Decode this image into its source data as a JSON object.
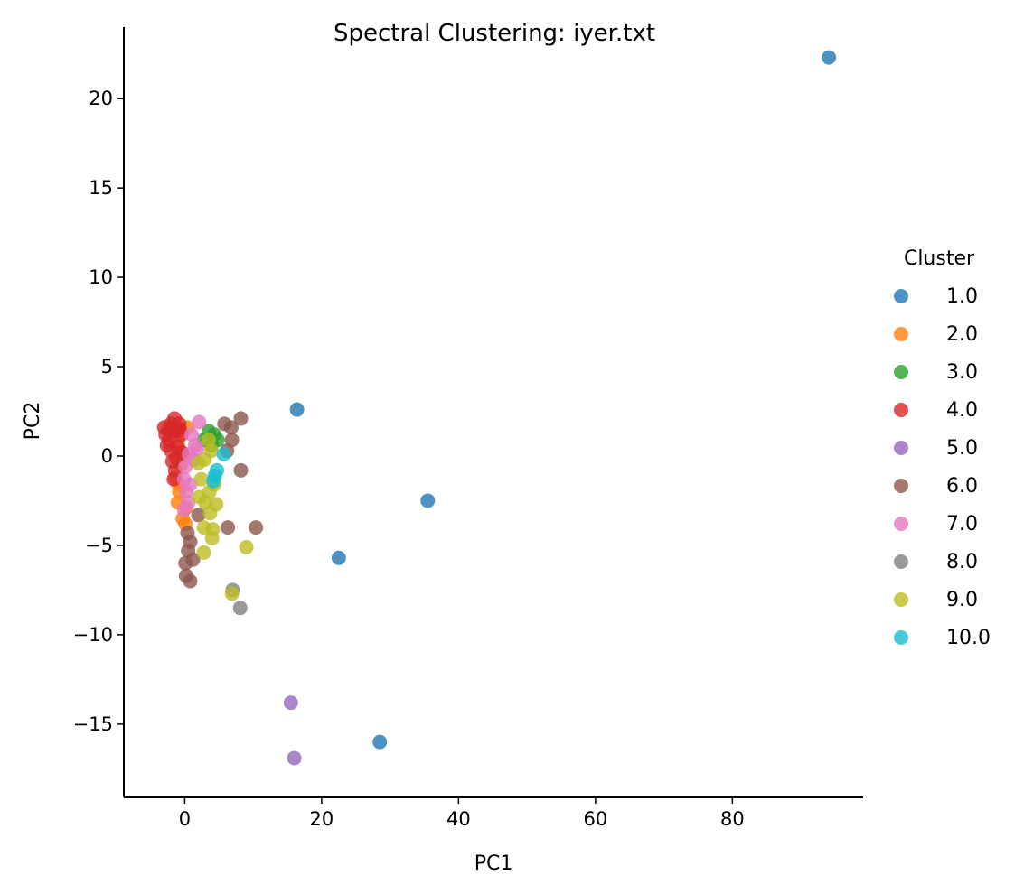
{
  "chart_data": {
    "type": "scatter",
    "title": "Spectral Clustering: iyer.txt",
    "xlabel": "PC1",
    "ylabel": "PC2",
    "xlim": [
      -8.9,
      99.1
    ],
    "ylim": [
      -19.1,
      24.0
    ],
    "xticks": [
      0,
      20,
      40,
      60,
      80
    ],
    "yticks": [
      -15,
      -10,
      -5,
      0,
      5,
      10,
      15,
      20
    ],
    "grid": false,
    "legend": {
      "title": "Cluster",
      "position": "right"
    },
    "series": [
      {
        "name": "1.0",
        "color": "#1f77b4",
        "points": [
          [
            94.1,
            22.3
          ],
          [
            16.4,
            2.6
          ],
          [
            35.5,
            -2.5
          ],
          [
            22.5,
            -5.7
          ],
          [
            28.5,
            -16.0
          ]
        ]
      },
      {
        "name": "2.0",
        "color": "#ff7f0e",
        "points": [
          [
            -2.5,
            1.5
          ],
          [
            -1.0,
            0.8
          ],
          [
            -0.6,
            -0.5
          ],
          [
            -1.3,
            -1.2
          ],
          [
            -0.8,
            -2.0
          ],
          [
            -1.0,
            -2.6
          ],
          [
            -0.3,
            -3.5
          ],
          [
            0.1,
            -3.8
          ],
          [
            0.4,
            1.6
          ],
          [
            -1.8,
            1.2
          ],
          [
            -0.2,
            0.0
          ],
          [
            -0.9,
            -1.6
          ],
          [
            0.2,
            -2.9
          ]
        ]
      },
      {
        "name": "3.0",
        "color": "#2ca02c",
        "points": [
          [
            3.5,
            1.4
          ],
          [
            4.3,
            1.2
          ],
          [
            2.8,
            0.9
          ],
          [
            3.9,
            0.6
          ],
          [
            4.8,
            0.9
          ]
        ]
      },
      {
        "name": "4.0",
        "color": "#d62728",
        "points": [
          [
            -3.0,
            1.6
          ],
          [
            -1.5,
            2.1
          ],
          [
            -2.0,
            1.8
          ],
          [
            -2.8,
            1.2
          ],
          [
            -1.2,
            1.4
          ],
          [
            -2.3,
            0.9
          ],
          [
            -2.0,
            0.3
          ],
          [
            -1.8,
            -0.3
          ],
          [
            -1.4,
            -0.8
          ],
          [
            -0.8,
            1.8
          ],
          [
            -0.5,
            1.2
          ],
          [
            -1.0,
            0.5
          ],
          [
            -1.6,
            -1.3
          ],
          [
            -0.4,
            0.2
          ],
          [
            -2.6,
            0.6
          ],
          [
            -1.9,
            1.5
          ],
          [
            -0.7,
            1.5
          ],
          [
            -1.2,
            -0.1
          ]
        ]
      },
      {
        "name": "5.0",
        "color": "#9467bd",
        "points": [
          [
            15.5,
            -13.8
          ],
          [
            16.0,
            -16.9
          ]
        ]
      },
      {
        "name": "6.0",
        "color": "#8c564b",
        "points": [
          [
            8.2,
            2.1
          ],
          [
            5.8,
            1.8
          ],
          [
            6.8,
            1.6
          ],
          [
            6.9,
            0.9
          ],
          [
            6.2,
            0.3
          ],
          [
            8.2,
            -0.8
          ],
          [
            6.3,
            -4.0
          ],
          [
            10.4,
            -4.0
          ],
          [
            2.0,
            -3.3
          ],
          [
            0.4,
            -4.3
          ],
          [
            0.8,
            -4.8
          ],
          [
            0.5,
            -5.3
          ],
          [
            0.1,
            -6.0
          ],
          [
            0.2,
            -6.7
          ],
          [
            0.8,
            -7.0
          ],
          [
            1.2,
            -5.8
          ]
        ]
      },
      {
        "name": "7.0",
        "color": "#e377c2",
        "points": [
          [
            2.1,
            1.9
          ],
          [
            1.0,
            1.2
          ],
          [
            1.5,
            0.6
          ],
          [
            0.6,
            0.1
          ],
          [
            0.1,
            -0.6
          ],
          [
            -0.1,
            -1.3
          ],
          [
            0.2,
            -2.0
          ],
          [
            0.5,
            -2.6
          ],
          [
            -0.1,
            -3.0
          ],
          [
            1.3,
            -0.2
          ],
          [
            0.8,
            -1.6
          ],
          [
            1.8,
            0.4
          ]
        ]
      },
      {
        "name": "8.0",
        "color": "#7f7f7f",
        "points": [
          [
            8.1,
            -8.5
          ],
          [
            7.0,
            -7.5
          ]
        ]
      },
      {
        "name": "9.0",
        "color": "#bcbd22",
        "points": [
          [
            3.5,
            0.9
          ],
          [
            3.9,
            0.3
          ],
          [
            2.9,
            -0.2
          ],
          [
            2.0,
            -0.4
          ],
          [
            2.1,
            -2.3
          ],
          [
            3.0,
            -2.6
          ],
          [
            4.6,
            -2.7
          ],
          [
            3.7,
            -3.2
          ],
          [
            2.8,
            -4.0
          ],
          [
            4.1,
            -4.1
          ],
          [
            4.0,
            -4.6
          ],
          [
            2.8,
            -5.4
          ],
          [
            9.0,
            -5.1
          ],
          [
            6.9,
            -7.7
          ],
          [
            3.6,
            -2.0
          ],
          [
            2.4,
            -1.3
          ],
          [
            4.3,
            -1.6
          ]
        ]
      },
      {
        "name": "10.0",
        "color": "#17becf",
        "points": [
          [
            5.7,
            0.1
          ],
          [
            4.7,
            -0.8
          ],
          [
            4.4,
            -1.1
          ],
          [
            4.2,
            -1.4
          ]
        ]
      }
    ]
  }
}
